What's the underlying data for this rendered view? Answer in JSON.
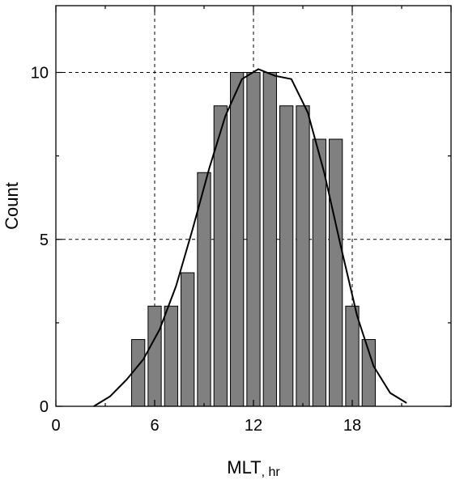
{
  "chart_data": {
    "type": "bar",
    "title": "",
    "xlabel": "MLT",
    "xlabel_unit": ", hr",
    "ylabel": "Count",
    "xlim": [
      0,
      24
    ],
    "ylim": [
      0,
      12
    ],
    "xticks": [
      0,
      6,
      12,
      18
    ],
    "yticks": [
      0,
      5,
      10
    ],
    "xtick_labels": [
      "0",
      "6",
      "12",
      "18"
    ],
    "ytick_labels": [
      "0",
      "5",
      "10"
    ],
    "grid": "dashed, at x=6,12,18 and y=5,10",
    "legend": "none",
    "bar_color": "#808080",
    "bar_edge_color": "#000000",
    "bar_width": 0.8,
    "x": [
      5,
      6,
      7,
      8,
      9,
      10,
      11,
      12,
      13,
      14,
      15,
      16,
      17,
      18,
      19
    ],
    "values": [
      2,
      3,
      3,
      4,
      7,
      9,
      10,
      10,
      10,
      9,
      9,
      8,
      8,
      3,
      2
    ],
    "curve": {
      "type": "line",
      "color": "#000000",
      "x": [
        2.3,
        3.3,
        4.3,
        5.3,
        6.3,
        7.3,
        8.3,
        9.3,
        10.3,
        11.3,
        12.3,
        13.3,
        14.3,
        15.3,
        16.3,
        17.3,
        18.3,
        19.3,
        20.3,
        21.3
      ],
      "y": [
        0.0,
        0.3,
        0.8,
        1.4,
        2.3,
        3.6,
        5.3,
        7.1,
        8.7,
        9.8,
        10.1,
        9.9,
        9.8,
        8.8,
        7.0,
        4.8,
        2.7,
        1.2,
        0.4,
        0.1
      ]
    }
  }
}
